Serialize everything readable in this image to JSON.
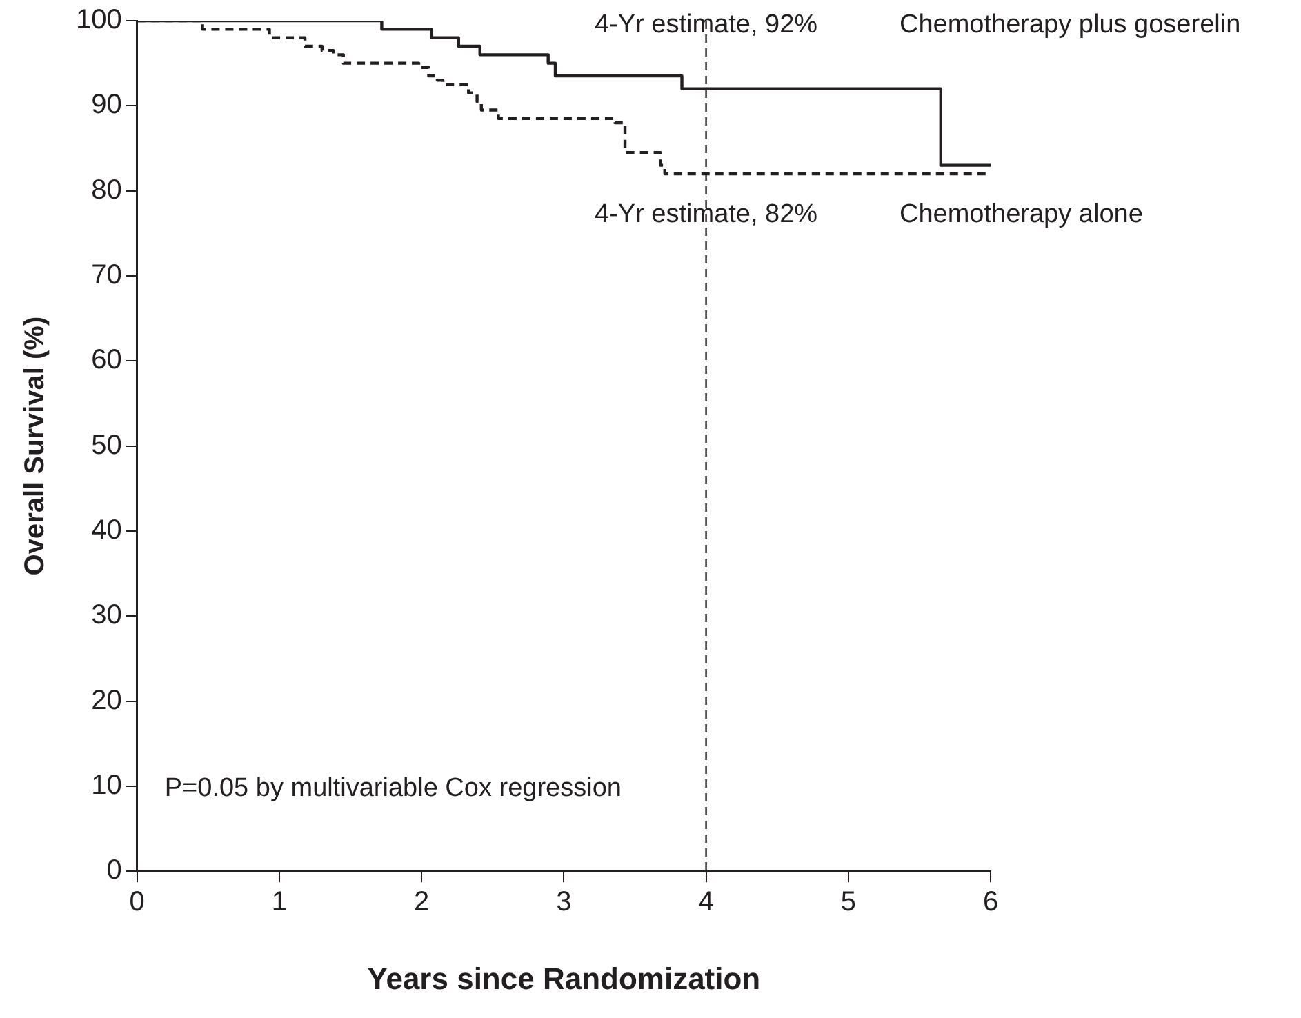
{
  "chart_data": {
    "type": "step",
    "xlabel": "Years since Randomization",
    "ylabel": "Overall Survival (%)",
    "xlim": [
      0,
      6
    ],
    "xticks": [
      0,
      1,
      2,
      3,
      4,
      5,
      6
    ],
    "ylim": [
      0,
      100
    ],
    "yticks": [
      0,
      10,
      20,
      30,
      40,
      50,
      60,
      70,
      80,
      90,
      100
    ],
    "grid": false,
    "legend": false,
    "marker": "none",
    "series": [
      {
        "name": "Chemotherapy plus goserelin",
        "color": "#231f20",
        "line_style": "solid",
        "x": [
          0,
          1.72,
          2.07,
          2.26,
          2.41,
          2.89,
          2.94,
          3.83,
          5.65,
          6
        ],
        "values": [
          100,
          99,
          98,
          97,
          96,
          95,
          93.5,
          92,
          83,
          83
        ]
      },
      {
        "name": "Chemotherapy alone",
        "color": "#231f20",
        "line_style": "dashed",
        "x": [
          0,
          0.46,
          0.93,
          1.18,
          1.3,
          1.38,
          1.45,
          1.98,
          2.05,
          2.11,
          2.15,
          2.33,
          2.39,
          2.42,
          2.54,
          3.36,
          3.43,
          3.68,
          3.71,
          6
        ],
        "values": [
          100,
          99,
          98,
          97,
          96.5,
          96,
          95,
          94.5,
          93.5,
          93,
          92.5,
          91.5,
          90.5,
          89.5,
          88.5,
          88,
          84.5,
          83,
          82,
          82
        ]
      }
    ],
    "ref_lines": [
      {
        "axis": "x",
        "value": 4,
        "color": "#231f20",
        "line_style": "dashed"
      }
    ],
    "annotations": [
      {
        "text": "4-Yr estimate, 92%",
        "x": 4,
        "y": 92
      },
      {
        "text": "4-Yr estimate, 82%",
        "x": 4,
        "y": 82
      },
      "P=0.05 by multivariable Cox regression"
    ]
  }
}
